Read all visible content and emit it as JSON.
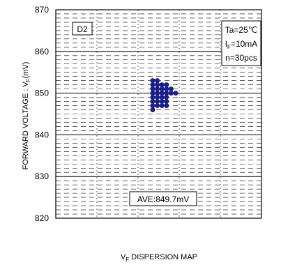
{
  "chart_data": {
    "type": "scatter",
    "title": "",
    "xlabel_main": "V",
    "xlabel_sub": "F",
    "xlabel_rest": " DISPERSION MAP",
    "ylabel_main": "FORWARD VOLTAGE : V",
    "ylabel_sub": "F",
    "ylabel_rest": "(mV)",
    "ylim": [
      820,
      870
    ],
    "yticks": [
      "820",
      "830",
      "840",
      "850",
      "860",
      "870"
    ],
    "grid": true,
    "device_label": "D2",
    "conditions": {
      "line1": "Ta=25℃",
      "line2_main": "I",
      "line2_sub": "F",
      "line2_rest": "=10mA",
      "line3": "n=30pcs"
    },
    "average_label": "AVE:849.7mV",
    "points": [
      {
        "col": 0,
        "y": 853
      },
      {
        "col": 0,
        "y": 852
      },
      {
        "col": 0,
        "y": 851
      },
      {
        "col": 0,
        "y": 850
      },
      {
        "col": 0,
        "y": 849
      },
      {
        "col": 0,
        "y": 848
      },
      {
        "col": 0,
        "y": 847
      },
      {
        "col": 0,
        "y": 846
      },
      {
        "col": 1,
        "y": 853
      },
      {
        "col": 1,
        "y": 852
      },
      {
        "col": 1,
        "y": 851
      },
      {
        "col": 1,
        "y": 850
      },
      {
        "col": 1,
        "y": 849
      },
      {
        "col": 1,
        "y": 848
      },
      {
        "col": 1,
        "y": 847
      },
      {
        "col": 2,
        "y": 852
      },
      {
        "col": 2,
        "y": 851
      },
      {
        "col": 2,
        "y": 850
      },
      {
        "col": 2,
        "y": 849
      },
      {
        "col": 2,
        "y": 848
      },
      {
        "col": 2,
        "y": 847
      },
      {
        "col": 3,
        "y": 852
      },
      {
        "col": 3,
        "y": 851
      },
      {
        "col": 3,
        "y": 850
      },
      {
        "col": 3,
        "y": 849
      },
      {
        "col": 3,
        "y": 848
      },
      {
        "col": 3,
        "y": 847
      },
      {
        "col": 4,
        "y": 851
      },
      {
        "col": 4,
        "y": 850
      },
      {
        "col": 5,
        "y": 850
      }
    ],
    "colors": {
      "points": "#1a1f8c",
      "axis": "#000000"
    }
  }
}
